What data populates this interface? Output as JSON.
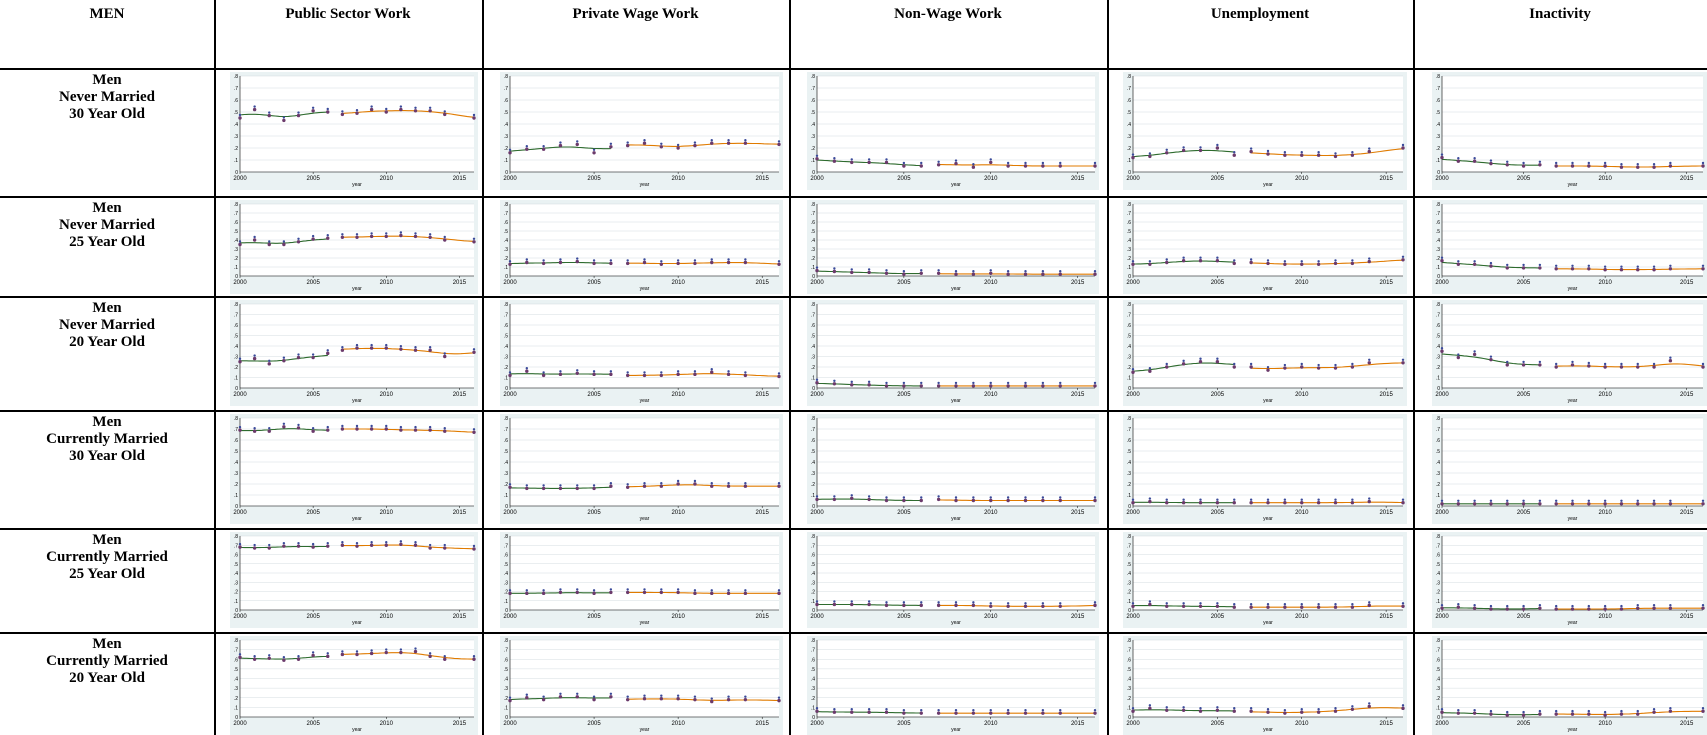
{
  "header": {
    "corner": "MEN",
    "columns": [
      "Public Sector Work",
      "Private Wage Work",
      "Non-Wage Work",
      "Unemployment",
      "Inactivity"
    ]
  },
  "rows": [
    {
      "lines": [
        "Men",
        "Never Married",
        "30 Year Old"
      ]
    },
    {
      "lines": [
        "Men",
        "Never Married",
        "25 Year Old"
      ]
    },
    {
      "lines": [
        "Men",
        "Never Married",
        "20 Year Old"
      ]
    },
    {
      "lines": [
        "Men",
        "Currently Married",
        "30 Year Old"
      ]
    },
    {
      "lines": [
        "Men",
        "Currently Married",
        "25 Year Old"
      ]
    },
    {
      "lines": [
        "Men",
        "Currently Married",
        "20 Year Old"
      ]
    }
  ],
  "colors": {
    "points": "#6b3a6b",
    "points_alt": "#3a4a9a",
    "fit_early": "#2e6b2e",
    "fit_late": "#e07b00",
    "panel_bg": "#eaf2f3",
    "grid": "#d5dde0"
  },
  "chart_data": {
    "type": "scatter",
    "layout": "6x5 small multiples, rows = groups, columns = outcomes",
    "xlabel": "year",
    "x_ticks": [
      "2000",
      "2005",
      "2010",
      "2015"
    ],
    "xlim": [
      2000,
      2016
    ],
    "ylim": [
      0,
      0.8
    ],
    "y_ticks": [
      ".8",
      ".7",
      ".6",
      ".5",
      ".4",
      ".3",
      ".2",
      ".1",
      "0"
    ],
    "years": [
      2000,
      2001,
      2002,
      2003,
      2004,
      2005,
      2006,
      2007,
      2008,
      2009,
      2010,
      2011,
      2012,
      2013,
      2014,
      2016
    ],
    "fit_split_year": 2007,
    "panels": [
      [
        {
          "values": [
            0.45,
            0.52,
            0.47,
            0.43,
            0.47,
            0.51,
            0.5,
            0.48,
            0.49,
            0.52,
            0.5,
            0.52,
            0.51,
            0.51,
            0.48,
            0.45
          ]
        },
        {
          "values": [
            0.16,
            0.19,
            0.19,
            0.22,
            0.23,
            0.16,
            0.21,
            0.22,
            0.24,
            0.21,
            0.2,
            0.22,
            0.24,
            0.24,
            0.24,
            0.23
          ]
        },
        {
          "values": [
            0.11,
            0.09,
            0.08,
            0.08,
            0.08,
            0.05,
            0.05,
            0.06,
            0.07,
            0.04,
            0.08,
            0.05,
            0.05,
            0.05,
            0.05,
            0.05
          ]
        },
        {
          "values": [
            0.12,
            0.13,
            0.16,
            0.18,
            0.18,
            0.2,
            0.14,
            0.17,
            0.15,
            0.14,
            0.14,
            0.14,
            0.13,
            0.14,
            0.17,
            0.2
          ]
        },
        {
          "values": [
            0.12,
            0.09,
            0.09,
            0.07,
            0.06,
            0.05,
            0.06,
            0.05,
            0.05,
            0.05,
            0.05,
            0.04,
            0.04,
            0.04,
            0.05,
            0.05
          ]
        }
      ],
      [
        {
          "values": [
            0.35,
            0.4,
            0.35,
            0.35,
            0.38,
            0.41,
            0.42,
            0.43,
            0.43,
            0.44,
            0.44,
            0.45,
            0.44,
            0.43,
            0.4,
            0.38
          ]
        },
        {
          "values": [
            0.13,
            0.15,
            0.14,
            0.15,
            0.16,
            0.14,
            0.14,
            0.14,
            0.15,
            0.13,
            0.14,
            0.14,
            0.15,
            0.15,
            0.15,
            0.13
          ]
        },
        {
          "values": [
            0.06,
            0.05,
            0.04,
            0.04,
            0.03,
            0.02,
            0.03,
            0.03,
            0.02,
            0.02,
            0.03,
            0.02,
            0.02,
            0.02,
            0.02,
            0.02
          ]
        },
        {
          "values": [
            0.13,
            0.13,
            0.15,
            0.17,
            0.17,
            0.17,
            0.14,
            0.15,
            0.14,
            0.13,
            0.13,
            0.13,
            0.14,
            0.14,
            0.16,
            0.18
          ]
        },
        {
          "values": [
            0.17,
            0.13,
            0.13,
            0.11,
            0.09,
            0.09,
            0.09,
            0.08,
            0.08,
            0.08,
            0.07,
            0.07,
            0.07,
            0.07,
            0.08,
            0.08
          ]
        }
      ],
      [
        {
          "values": [
            0.25,
            0.28,
            0.23,
            0.26,
            0.29,
            0.29,
            0.33,
            0.36,
            0.38,
            0.38,
            0.38,
            0.37,
            0.36,
            0.36,
            0.3,
            0.34
          ]
        },
        {
          "values": [
            0.12,
            0.16,
            0.12,
            0.13,
            0.14,
            0.13,
            0.13,
            0.12,
            0.12,
            0.12,
            0.13,
            0.13,
            0.15,
            0.13,
            0.12,
            0.11
          ]
        },
        {
          "values": [
            0.05,
            0.04,
            0.03,
            0.03,
            0.02,
            0.02,
            0.02,
            0.02,
            0.02,
            0.02,
            0.02,
            0.02,
            0.02,
            0.02,
            0.02,
            0.02
          ]
        },
        {
          "values": [
            0.15,
            0.16,
            0.2,
            0.23,
            0.25,
            0.25,
            0.2,
            0.2,
            0.17,
            0.19,
            0.2,
            0.19,
            0.19,
            0.2,
            0.24,
            0.24
          ]
        },
        {
          "values": [
            0.35,
            0.29,
            0.32,
            0.27,
            0.22,
            0.22,
            0.22,
            0.2,
            0.22,
            0.21,
            0.2,
            0.2,
            0.2,
            0.2,
            0.26,
            0.2
          ]
        }
      ],
      [
        {
          "values": [
            0.69,
            0.68,
            0.68,
            0.72,
            0.71,
            0.68,
            0.69,
            0.7,
            0.7,
            0.7,
            0.7,
            0.69,
            0.69,
            0.69,
            0.68,
            0.67
          ]
        },
        {
          "values": [
            0.17,
            0.16,
            0.16,
            0.16,
            0.16,
            0.16,
            0.18,
            0.17,
            0.18,
            0.18,
            0.2,
            0.2,
            0.18,
            0.18,
            0.18,
            0.18
          ]
        },
        {
          "values": [
            0.06,
            0.06,
            0.07,
            0.06,
            0.05,
            0.05,
            0.05,
            0.06,
            0.05,
            0.05,
            0.05,
            0.05,
            0.05,
            0.05,
            0.05,
            0.05
          ]
        },
        {
          "values": [
            0.03,
            0.04,
            0.03,
            0.03,
            0.03,
            0.03,
            0.03,
            0.03,
            0.03,
            0.03,
            0.03,
            0.03,
            0.03,
            0.03,
            0.04,
            0.03
          ]
        },
        {
          "values": [
            0.02,
            0.02,
            0.02,
            0.02,
            0.02,
            0.02,
            0.02,
            0.02,
            0.02,
            0.02,
            0.02,
            0.02,
            0.02,
            0.02,
            0.02,
            0.02
          ]
        }
      ],
      [
        {
          "values": [
            0.68,
            0.67,
            0.67,
            0.69,
            0.69,
            0.68,
            0.69,
            0.7,
            0.69,
            0.7,
            0.7,
            0.71,
            0.7,
            0.67,
            0.67,
            0.66
          ]
        },
        {
          "values": [
            0.18,
            0.18,
            0.18,
            0.19,
            0.19,
            0.18,
            0.19,
            0.19,
            0.19,
            0.19,
            0.19,
            0.18,
            0.18,
            0.18,
            0.18,
            0.18
          ]
        },
        {
          "values": [
            0.06,
            0.06,
            0.06,
            0.06,
            0.05,
            0.05,
            0.05,
            0.05,
            0.05,
            0.05,
            0.04,
            0.04,
            0.04,
            0.04,
            0.04,
            0.05
          ]
        },
        {
          "values": [
            0.04,
            0.06,
            0.04,
            0.04,
            0.04,
            0.04,
            0.03,
            0.03,
            0.03,
            0.03,
            0.03,
            0.03,
            0.03,
            0.03,
            0.05,
            0.04
          ]
        },
        {
          "values": [
            0.02,
            0.03,
            0.02,
            0.01,
            0.01,
            0.01,
            0.02,
            0.01,
            0.01,
            0.01,
            0.01,
            0.01,
            0.02,
            0.02,
            0.02,
            0.02
          ]
        }
      ],
      [
        {
          "values": [
            0.62,
            0.6,
            0.61,
            0.59,
            0.6,
            0.64,
            0.63,
            0.65,
            0.65,
            0.66,
            0.67,
            0.67,
            0.68,
            0.63,
            0.6,
            0.6
          ]
        },
        {
          "values": [
            0.17,
            0.2,
            0.18,
            0.21,
            0.21,
            0.18,
            0.21,
            0.18,
            0.19,
            0.19,
            0.19,
            0.18,
            0.16,
            0.18,
            0.18,
            0.17
          ]
        },
        {
          "values": [
            0.06,
            0.05,
            0.05,
            0.05,
            0.05,
            0.04,
            0.04,
            0.04,
            0.04,
            0.04,
            0.04,
            0.04,
            0.04,
            0.04,
            0.04,
            0.04
          ]
        },
        {
          "values": [
            0.06,
            0.09,
            0.07,
            0.07,
            0.06,
            0.07,
            0.06,
            0.06,
            0.05,
            0.04,
            0.05,
            0.05,
            0.06,
            0.08,
            0.11,
            0.09
          ]
        },
        {
          "values": [
            0.05,
            0.04,
            0.04,
            0.03,
            0.02,
            0.02,
            0.03,
            0.03,
            0.03,
            0.03,
            0.02,
            0.03,
            0.03,
            0.05,
            0.06,
            0.06
          ]
        }
      ]
    ]
  }
}
